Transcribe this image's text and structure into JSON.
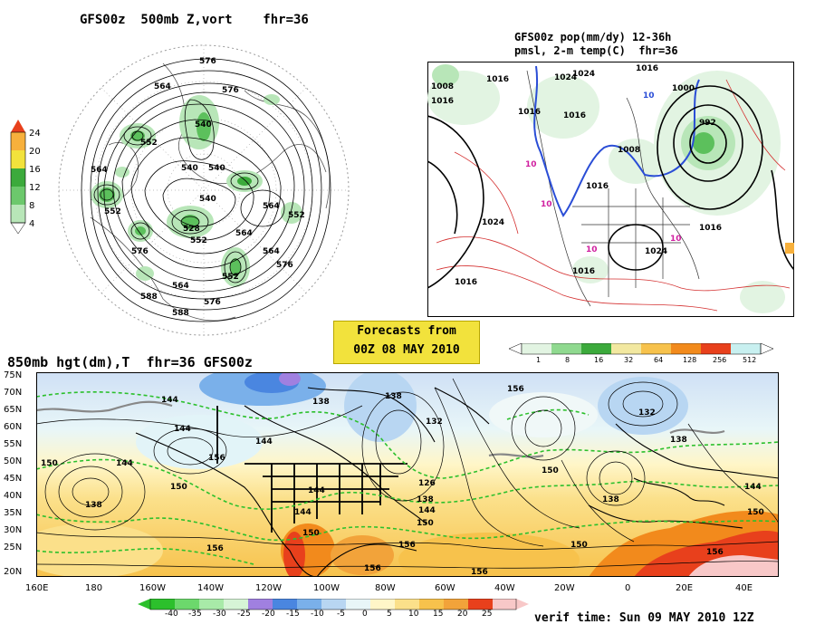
{
  "panels": {
    "top_left": {
      "title": "GFS00z  500mb Z,vort    fhr=36",
      "colorbar_ticks": [
        "24",
        "20",
        "16",
        "12",
        "8",
        "4"
      ],
      "contour_labels": [
        "576",
        "564",
        "576",
        "552",
        "540",
        "564",
        "552",
        "540",
        "564",
        "552",
        "528",
        "540",
        "552",
        "564",
        "576",
        "564",
        "576",
        "588",
        "540",
        "552",
        "564",
        "576",
        "588"
      ]
    },
    "top_right": {
      "title_line1": "GFS00z pop(mm/dy) 12-36h",
      "title_line2": "pmsl, 2-m temp(C)  fhr=36",
      "colorbar_ticks": [
        "1",
        "8",
        "16",
        "32",
        "64",
        "128",
        "256",
        "512"
      ],
      "pressure_labels": [
        "1008",
        "1016",
        "1016",
        "1016",
        "1024",
        "1016",
        "1016",
        "1024",
        "1000",
        "992",
        "1024",
        "1016",
        "1008",
        "1024",
        "1016",
        "1016",
        "1016"
      ],
      "temp_labels": [
        "10",
        "10",
        "10",
        "10",
        "10"
      ]
    },
    "center_badge": {
      "line1": "Forecasts from",
      "line2": "00Z 08 MAY 2010"
    },
    "bottom": {
      "title": "850mb hgt(dm),T  fhr=36 GFS00z",
      "lat_labels": [
        "75N",
        "70N",
        "65N",
        "60N",
        "55N",
        "50N",
        "45N",
        "40N",
        "35N",
        "30N",
        "25N",
        "20N"
      ],
      "lon_labels": [
        "160E",
        "180",
        "160W",
        "140W",
        "120W",
        "100W",
        "80W",
        "60W",
        "40W",
        "20W",
        "0",
        "20E",
        "40E"
      ],
      "colorbar_ticks": [
        "-40",
        "-35",
        "-30",
        "-25",
        "-20",
        "-15",
        "-10",
        "-5",
        "0",
        "5",
        "10",
        "15",
        "20",
        "25"
      ],
      "height_labels": [
        "144",
        "144",
        "150",
        "144",
        "150",
        "138",
        "144",
        "144",
        "138",
        "138",
        "132",
        "144",
        "126",
        "138",
        "144",
        "150",
        "156",
        "150",
        "156",
        "156",
        "138",
        "132",
        "138",
        "150",
        "156",
        "150",
        "144",
        "150",
        "156",
        "156",
        "156"
      ],
      "verif_time": "verif time: Sun 09 MAY 2010 12Z"
    }
  },
  "colors": {
    "badge": "#f2e23c",
    "vort_green": "#5cc05c",
    "precip_green": "#8fd98f",
    "cold_blue": "#3a7de0",
    "warm_orange": "#f2a33a",
    "hot_red": "#e8401c"
  }
}
